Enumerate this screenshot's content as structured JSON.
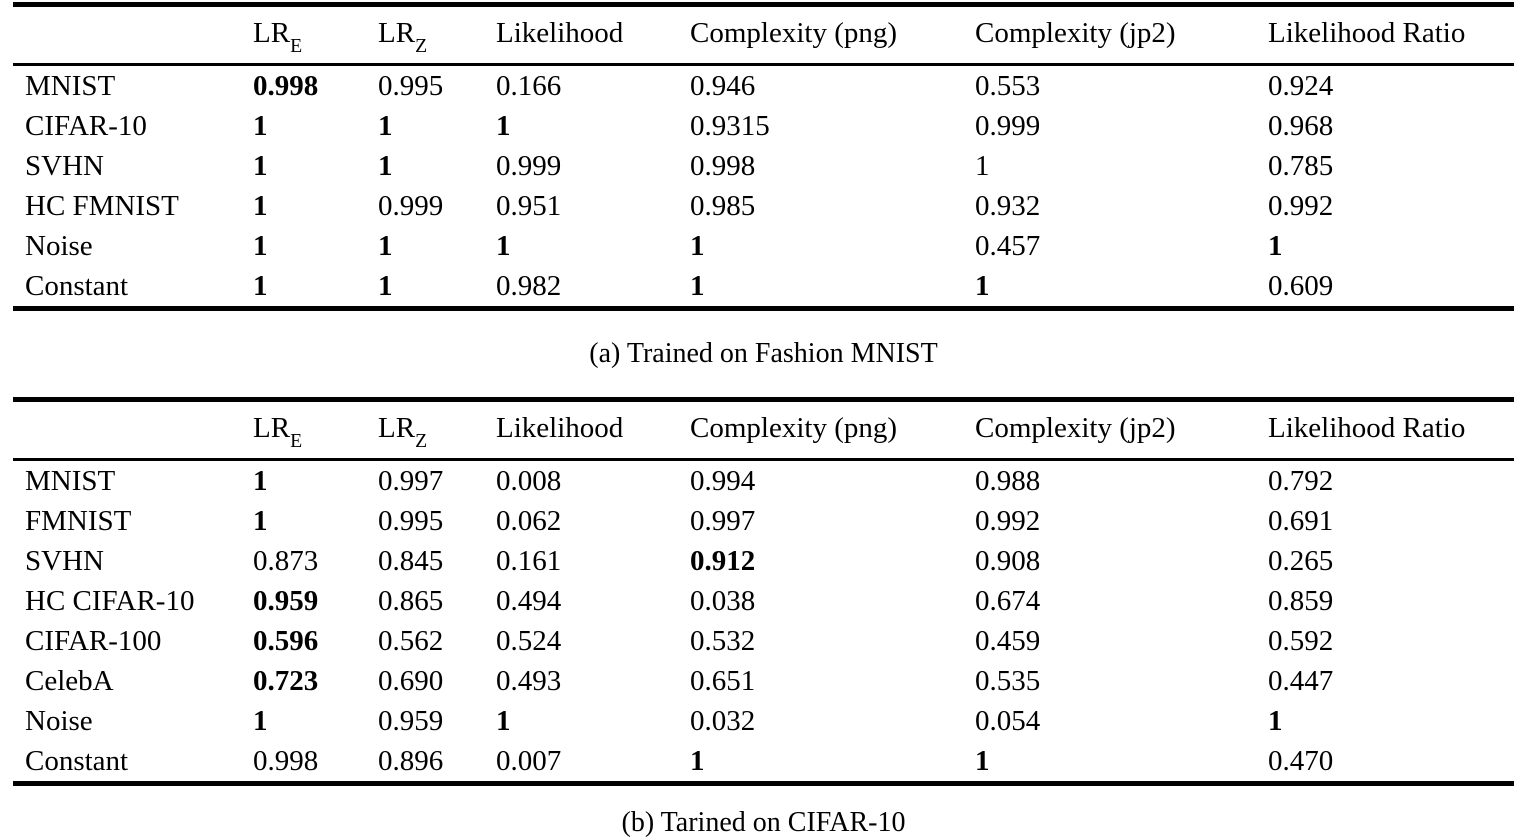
{
  "figure": {
    "description_colors": {
      "text": "#000000",
      "background": "#ffffff",
      "rule": "#000000"
    }
  },
  "tables": [
    {
      "caption": "(a) Trained on Fashion MNIST",
      "headers": [
        {
          "base": "LR",
          "sub": "E"
        },
        {
          "base": "LR",
          "sub": "Z"
        },
        {
          "base": "Likelihood",
          "sub": ""
        },
        {
          "base": "Complexity (png)",
          "sub": ""
        },
        {
          "base": "Complexity (jp2)",
          "sub": ""
        },
        {
          "base": "Likelihood Ratio",
          "sub": ""
        }
      ],
      "rows": [
        {
          "label": "MNIST",
          "cells": [
            {
              "v": "0.998",
              "b": true
            },
            {
              "v": "0.995",
              "b": false
            },
            {
              "v": "0.166",
              "b": false
            },
            {
              "v": "0.946",
              "b": false
            },
            {
              "v": "0.553",
              "b": false
            },
            {
              "v": "0.924",
              "b": false
            }
          ]
        },
        {
          "label": "CIFAR-10",
          "cells": [
            {
              "v": "1",
              "b": true
            },
            {
              "v": "1",
              "b": true
            },
            {
              "v": "1",
              "b": true
            },
            {
              "v": "0.9315",
              "b": false
            },
            {
              "v": "0.999",
              "b": false
            },
            {
              "v": "0.968",
              "b": false
            }
          ]
        },
        {
          "label": "SVHN",
          "cells": [
            {
              "v": "1",
              "b": true
            },
            {
              "v": "1",
              "b": true
            },
            {
              "v": "0.999",
              "b": false
            },
            {
              "v": "0.998",
              "b": false
            },
            {
              "v": "1",
              "b": false
            },
            {
              "v": "0.785",
              "b": false
            }
          ]
        },
        {
          "label": "HC FMNIST",
          "cells": [
            {
              "v": "1",
              "b": true
            },
            {
              "v": "0.999",
              "b": false
            },
            {
              "v": "0.951",
              "b": false
            },
            {
              "v": "0.985",
              "b": false
            },
            {
              "v": "0.932",
              "b": false
            },
            {
              "v": "0.992",
              "b": false
            }
          ]
        },
        {
          "label": "Noise",
          "cells": [
            {
              "v": "1",
              "b": true
            },
            {
              "v": "1",
              "b": true
            },
            {
              "v": "1",
              "b": true
            },
            {
              "v": "1",
              "b": true
            },
            {
              "v": "0.457",
              "b": false
            },
            {
              "v": "1",
              "b": true
            }
          ]
        },
        {
          "label": "Constant",
          "cells": [
            {
              "v": "1",
              "b": true
            },
            {
              "v": "1",
              "b": true
            },
            {
              "v": "0.982",
              "b": false
            },
            {
              "v": "1",
              "b": true
            },
            {
              "v": "1",
              "b": true
            },
            {
              "v": "0.609",
              "b": false
            }
          ]
        }
      ]
    },
    {
      "caption": "(b) Tarined on CIFAR-10",
      "headers": [
        {
          "base": "LR",
          "sub": "E"
        },
        {
          "base": "LR",
          "sub": "Z"
        },
        {
          "base": "Likelihood",
          "sub": ""
        },
        {
          "base": "Complexity (png)",
          "sub": ""
        },
        {
          "base": "Complexity (jp2)",
          "sub": ""
        },
        {
          "base": "Likelihood Ratio",
          "sub": ""
        }
      ],
      "rows": [
        {
          "label": "MNIST",
          "cells": [
            {
              "v": "1",
              "b": true
            },
            {
              "v": "0.997",
              "b": false
            },
            {
              "v": "0.008",
              "b": false
            },
            {
              "v": "0.994",
              "b": false
            },
            {
              "v": "0.988",
              "b": false
            },
            {
              "v": "0.792",
              "b": false
            }
          ]
        },
        {
          "label": "FMNIST",
          "cells": [
            {
              "v": "1",
              "b": true
            },
            {
              "v": "0.995",
              "b": false
            },
            {
              "v": "0.062",
              "b": false
            },
            {
              "v": "0.997",
              "b": false
            },
            {
              "v": "0.992",
              "b": false
            },
            {
              "v": "0.691",
              "b": false
            }
          ]
        },
        {
          "label": "SVHN",
          "cells": [
            {
              "v": "0.873",
              "b": false
            },
            {
              "v": "0.845",
              "b": false
            },
            {
              "v": "0.161",
              "b": false
            },
            {
              "v": "0.912",
              "b": true
            },
            {
              "v": "0.908",
              "b": false
            },
            {
              "v": "0.265",
              "b": false
            }
          ]
        },
        {
          "label": "HC CIFAR-10",
          "cells": [
            {
              "v": "0.959",
              "b": true
            },
            {
              "v": "0.865",
              "b": false
            },
            {
              "v": "0.494",
              "b": false
            },
            {
              "v": "0.038",
              "b": false
            },
            {
              "v": "0.674",
              "b": false
            },
            {
              "v": "0.859",
              "b": false
            }
          ]
        },
        {
          "label": "CIFAR-100",
          "cells": [
            {
              "v": "0.596",
              "b": true
            },
            {
              "v": "0.562",
              "b": false
            },
            {
              "v": "0.524",
              "b": false
            },
            {
              "v": "0.532",
              "b": false
            },
            {
              "v": "0.459",
              "b": false
            },
            {
              "v": "0.592",
              "b": false
            }
          ]
        },
        {
          "label": "CelebA",
          "cells": [
            {
              "v": "0.723",
              "b": true
            },
            {
              "v": "0.690",
              "b": false
            },
            {
              "v": "0.493",
              "b": false
            },
            {
              "v": "0.651",
              "b": false
            },
            {
              "v": "0.535",
              "b": false
            },
            {
              "v": "0.447",
              "b": false
            }
          ]
        },
        {
          "label": "Noise",
          "cells": [
            {
              "v": "1",
              "b": true
            },
            {
              "v": "0.959",
              "b": false
            },
            {
              "v": "1",
              "b": true
            },
            {
              "v": "0.032",
              "b": false
            },
            {
              "v": "0.054",
              "b": false
            },
            {
              "v": "1",
              "b": true
            }
          ]
        },
        {
          "label": "Constant",
          "cells": [
            {
              "v": "0.998",
              "b": false
            },
            {
              "v": "0.896",
              "b": false
            },
            {
              "v": "0.007",
              "b": false
            },
            {
              "v": "1",
              "b": true
            },
            {
              "v": "1",
              "b": true
            },
            {
              "v": "0.470",
              "b": false
            }
          ]
        }
      ]
    }
  ],
  "chart_data": [
    {
      "type": "table",
      "title": "(a) Trained on Fashion MNIST",
      "columns": [
        "",
        "LR_E",
        "LR_Z",
        "Likelihood",
        "Complexity (png)",
        "Complexity (jp2)",
        "Likelihood Ratio"
      ],
      "rows": [
        [
          "MNIST",
          0.998,
          0.995,
          0.166,
          0.946,
          0.553,
          0.924
        ],
        [
          "CIFAR-10",
          1,
          1,
          1,
          0.9315,
          0.999,
          0.968
        ],
        [
          "SVHN",
          1,
          1,
          0.999,
          0.998,
          1,
          0.785
        ],
        [
          "HC FMNIST",
          1,
          0.999,
          0.951,
          0.985,
          0.932,
          0.992
        ],
        [
          "Noise",
          1,
          1,
          1,
          1,
          0.457,
          1
        ],
        [
          "Constant",
          1,
          1,
          0.982,
          1,
          1,
          0.609
        ]
      ]
    },
    {
      "type": "table",
      "title": "(b) Tarined on CIFAR-10",
      "columns": [
        "",
        "LR_E",
        "LR_Z",
        "Likelihood",
        "Complexity (png)",
        "Complexity (jp2)",
        "Likelihood Ratio"
      ],
      "rows": [
        [
          "MNIST",
          1,
          0.997,
          0.008,
          0.994,
          0.988,
          0.792
        ],
        [
          "FMNIST",
          1,
          0.995,
          0.062,
          0.997,
          0.992,
          0.691
        ],
        [
          "SVHN",
          0.873,
          0.845,
          0.161,
          0.912,
          0.908,
          0.265
        ],
        [
          "HC CIFAR-10",
          0.959,
          0.865,
          0.494,
          0.038,
          0.674,
          0.859
        ],
        [
          "CIFAR-100",
          0.596,
          0.562,
          0.524,
          0.532,
          0.459,
          0.592
        ],
        [
          "CelebA",
          0.723,
          0.69,
          0.493,
          0.651,
          0.535,
          0.447
        ],
        [
          "Noise",
          1,
          0.959,
          1,
          0.032,
          0.054,
          1
        ],
        [
          "Constant",
          0.998,
          0.896,
          0.007,
          1,
          1,
          0.47
        ]
      ]
    }
  ]
}
